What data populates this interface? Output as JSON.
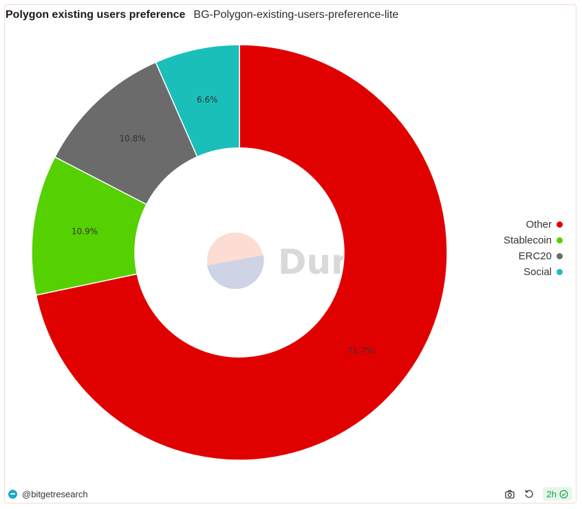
{
  "header": {
    "title": "Polygon existing users preference",
    "subtitle": "BG-Polygon-existing-users-preference-lite"
  },
  "chart_data": {
    "type": "pie",
    "donut": true,
    "categories": [
      "Other",
      "Stablecoin",
      "ERC20",
      "Social"
    ],
    "values": [
      71.7,
      10.9,
      10.8,
      6.6
    ],
    "labels": [
      "71.7%",
      "10.9%",
      "10.8%",
      "6.6%"
    ],
    "colors": [
      "#e00000",
      "#55d000",
      "#6b6b6b",
      "#1abfba"
    ],
    "unit": "%",
    "legend_position": "right",
    "watermark": "Dune"
  },
  "legend": {
    "items": [
      {
        "label": "Other",
        "color": "#e00000"
      },
      {
        "label": "Stablecoin",
        "color": "#55d000"
      },
      {
        "label": "ERC20",
        "color": "#6b6b6b"
      },
      {
        "label": "Social",
        "color": "#1abfba"
      }
    ]
  },
  "footer": {
    "author": "@bitgetresearch",
    "freshness": "2h",
    "camera_icon": "camera-icon",
    "refresh_icon": "refresh-icon",
    "check_icon": "check-circle-icon"
  },
  "colors": {
    "border": "#f3d9cf",
    "fresh_bg": "#e5f7ea",
    "fresh_text": "#1c9a47",
    "brand": "#1fa7c9"
  }
}
